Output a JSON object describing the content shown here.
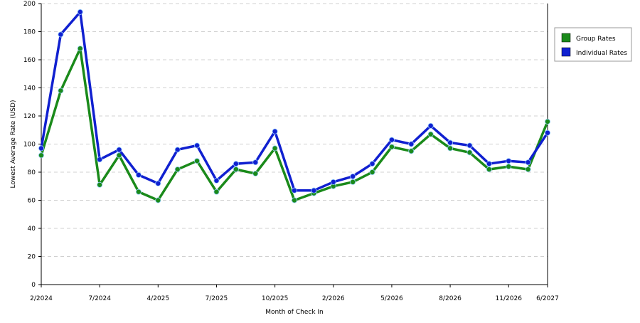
{
  "chart_data": {
    "type": "line",
    "xlabel": "Month of Check In",
    "ylabel": "Lowest Average Rate (USD)",
    "ylim": [
      0,
      200
    ],
    "yticks": [
      0,
      20,
      40,
      60,
      80,
      100,
      120,
      140,
      160,
      180,
      200
    ],
    "grid": true,
    "legend_position": "right",
    "x_tick_labels": [
      "2/2024",
      "7/2024",
      "4/2025",
      "7/2025",
      "10/2025",
      "2/2026",
      "5/2026",
      "8/2026",
      "11/2026",
      "6/2027"
    ],
    "x_tick_indices": [
      0,
      3,
      6,
      9,
      12,
      15,
      18,
      21,
      24,
      26
    ],
    "point_count": 27,
    "series": [
      {
        "name": "Group Rates",
        "color": "#1a8a1a",
        "values": [
          92,
          138,
          168,
          71,
          92,
          66,
          60,
          82,
          88,
          66,
          82,
          79,
          97,
          60,
          65,
          70,
          73,
          80,
          98,
          95,
          107,
          97,
          94,
          82,
          84,
          82,
          116
        ]
      },
      {
        "name": "Individual Rates",
        "color": "#1020d0",
        "values": [
          97,
          178,
          194,
          89,
          96,
          78,
          72,
          96,
          99,
          74,
          86,
          87,
          109,
          67,
          67,
          73,
          77,
          86,
          103,
          100,
          113,
          101,
          99,
          86,
          88,
          87,
          108
        ]
      }
    ]
  }
}
